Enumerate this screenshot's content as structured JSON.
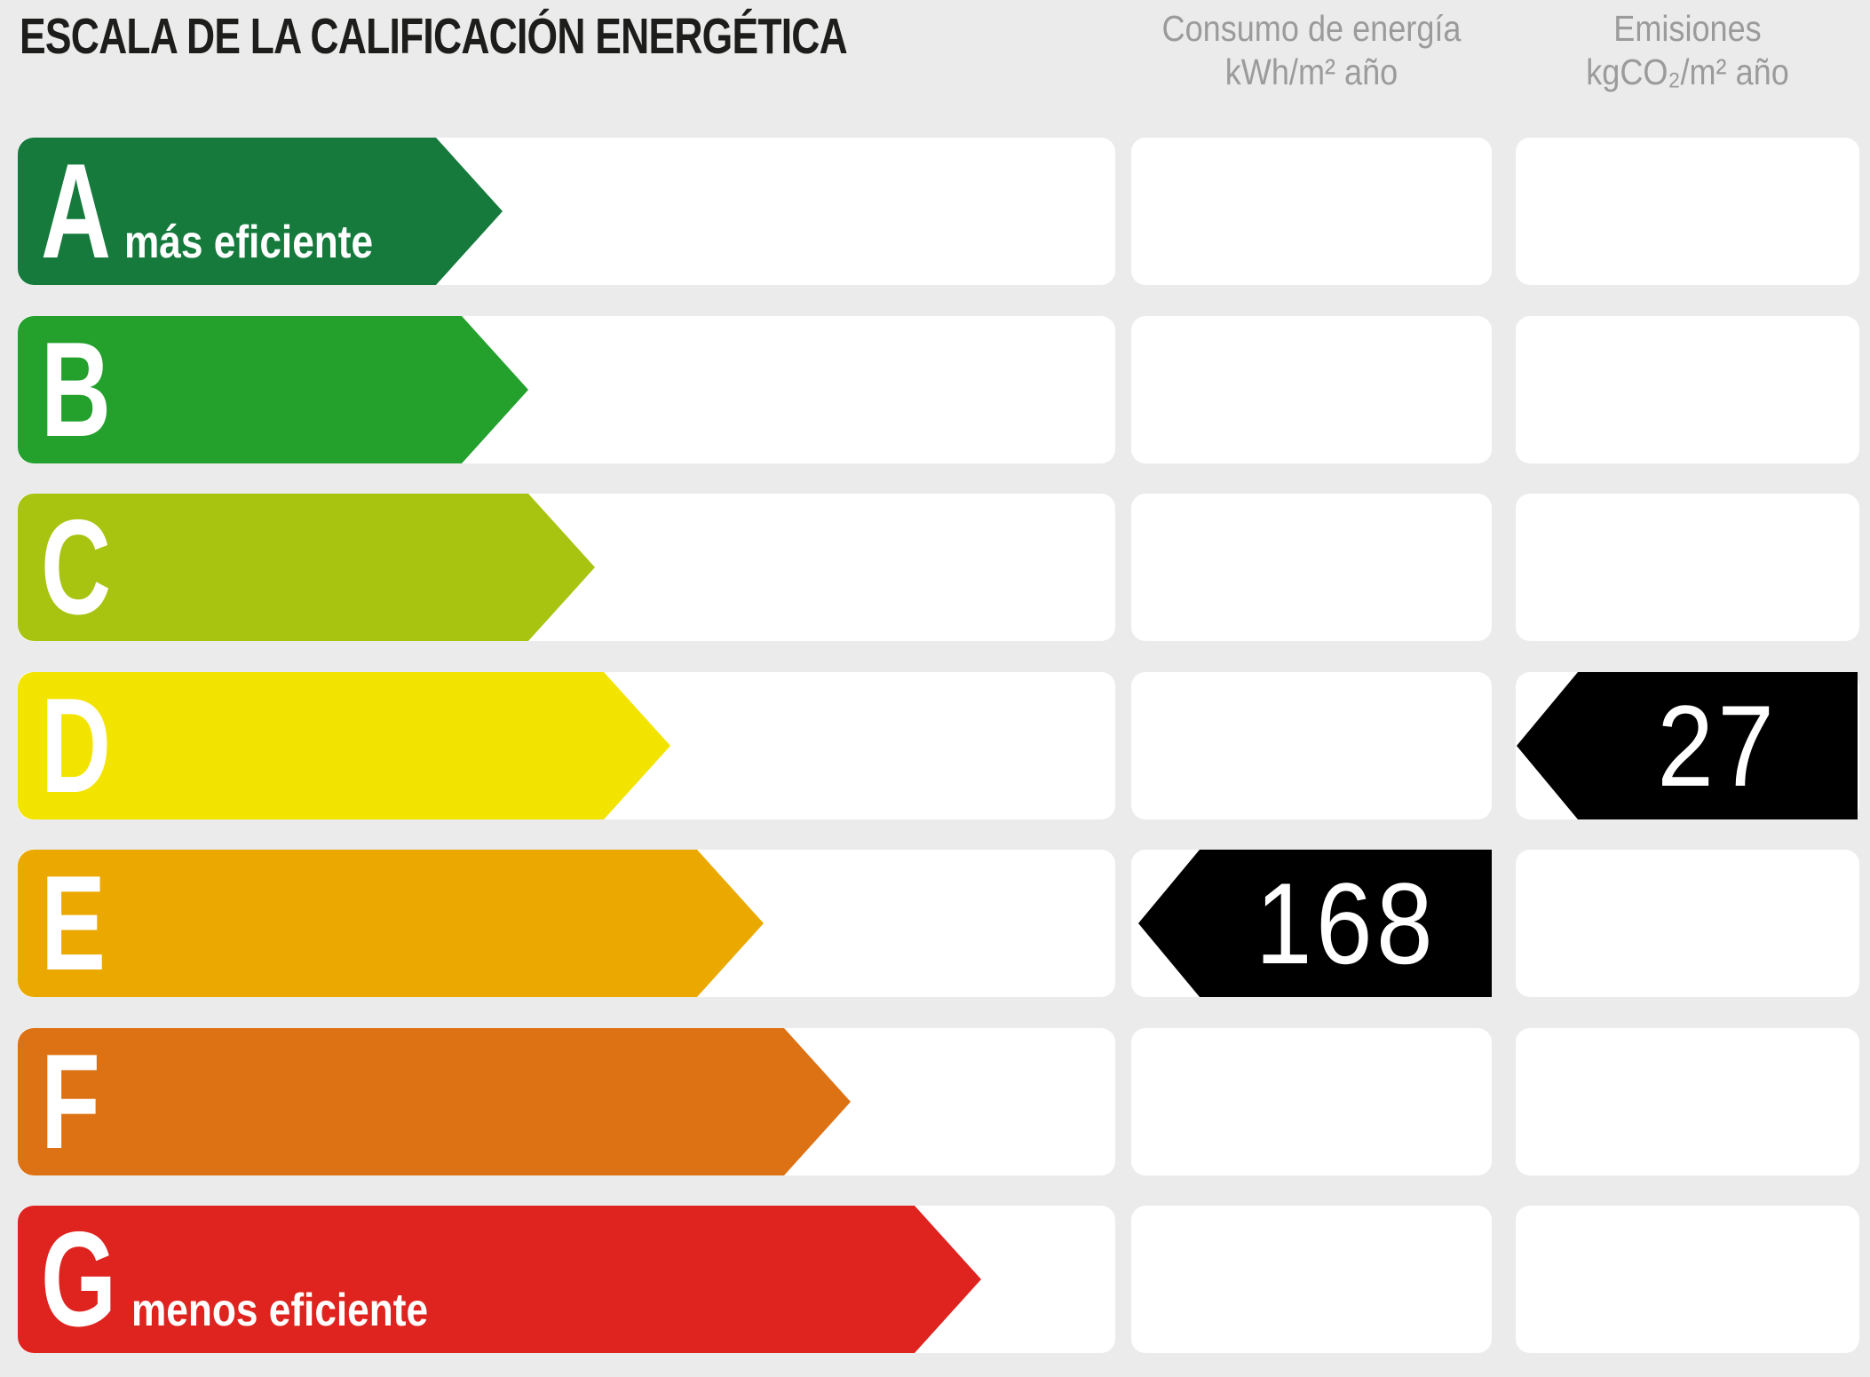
{
  "title": "ESCALA DE LA CALIFICACIÓN ENERGÉTICA",
  "columns": {
    "consumo": {
      "line1": "Consumo de energía",
      "line2": "kWh/m² año"
    },
    "emisiones": {
      "line1": "Emisiones",
      "line2": "kgCO₂/m² año"
    }
  },
  "rows": [
    {
      "grade": "A",
      "note": "más eficiente",
      "color": "#167A3D",
      "consumo": null,
      "emisiones": null
    },
    {
      "grade": "B",
      "note": null,
      "color": "#23A12C",
      "consumo": null,
      "emisiones": null
    },
    {
      "grade": "C",
      "note": null,
      "color": "#A8C411",
      "consumo": null,
      "emisiones": null
    },
    {
      "grade": "D",
      "note": null,
      "color": "#F3E400",
      "consumo": null,
      "emisiones": 27
    },
    {
      "grade": "E",
      "note": null,
      "color": "#EBA900",
      "consumo": 168,
      "emisiones": null
    },
    {
      "grade": "F",
      "note": null,
      "color": "#DD7214",
      "consumo": null,
      "emisiones": null
    },
    {
      "grade": "G",
      "note": "menos eficiente",
      "color": "#DF241F",
      "consumo": null,
      "emisiones": null
    }
  ],
  "colors": {
    "background": "#EBEBEB",
    "cell_background": "#FFFFFF",
    "marker": "#000000",
    "marker_text": "#FFFFFF",
    "title_text": "#1D1D1B",
    "header_text": "#9B9B9B"
  },
  "chart_data": {
    "type": "bar",
    "title": "ESCALA DE LA CALIFICACIÓN ENERGÉTICA",
    "categories": [
      "A",
      "B",
      "C",
      "D",
      "E",
      "F",
      "G"
    ],
    "bar_colors": [
      "#167A3D",
      "#23A12C",
      "#A8C411",
      "#F3E400",
      "#EBA900",
      "#DD7214",
      "#DF241F"
    ],
    "bar_relative_lengths": [
      0.442,
      0.465,
      0.526,
      0.595,
      0.68,
      0.759,
      0.878
    ],
    "columns": [
      "Consumo de energía kWh/m² año",
      "Emisiones kgCO₂/m² año"
    ],
    "annotations": [
      {
        "category": "E",
        "column": "Consumo de energía kWh/m² año",
        "value": 168
      },
      {
        "category": "D",
        "column": "Emisiones kgCO₂/m² año",
        "value": 27
      }
    ],
    "scale_notes": {
      "A": "más eficiente",
      "G": "menos eficiente"
    },
    "legend_position": "none",
    "grid": false
  }
}
